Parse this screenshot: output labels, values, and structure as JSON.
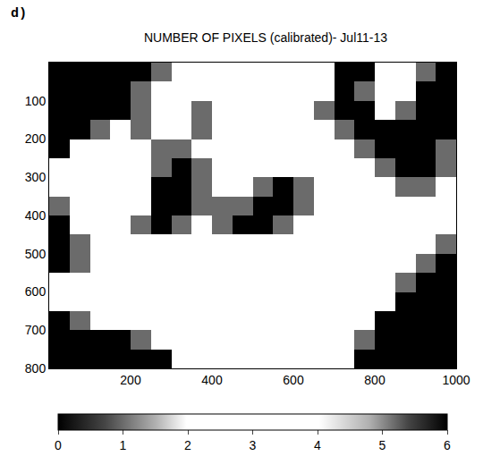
{
  "chart_data": {
    "type": "heatmap",
    "title": "NUMBER OF PIXELS (calibrated)- Jul11-13",
    "annotations": [
      "d)"
    ],
    "x": [
      25,
      75,
      125,
      175,
      225,
      275,
      325,
      375,
      425,
      475,
      525,
      575,
      625,
      675,
      725,
      775,
      825,
      875,
      925,
      975
    ],
    "y": [
      25,
      75,
      125,
      175,
      225,
      275,
      325,
      375,
      425,
      475,
      525,
      575,
      625,
      675,
      725,
      775
    ],
    "z": [
      [
        0,
        0,
        0,
        0,
        0,
        1,
        3,
        2,
        3,
        3,
        3,
        3,
        3,
        2,
        0,
        0,
        2,
        3,
        1,
        0
      ],
      [
        0,
        0,
        0,
        0,
        1,
        3,
        3,
        2,
        3,
        3,
        3,
        3,
        3,
        2,
        0,
        1,
        3,
        3,
        0,
        0
      ],
      [
        0,
        0,
        0,
        0,
        1,
        3,
        2,
        1,
        3,
        3,
        3,
        3,
        2,
        1,
        0,
        0,
        2,
        1,
        0,
        0
      ],
      [
        0,
        0,
        1,
        2,
        1,
        2,
        2,
        1,
        2,
        3,
        3,
        3,
        2,
        2,
        1,
        0,
        0,
        0,
        0,
        0
      ],
      [
        0,
        3,
        3,
        3,
        2,
        1,
        1,
        2,
        2,
        3,
        3,
        3,
        3,
        2,
        2,
        1,
        0,
        0,
        0,
        1
      ],
      [
        2,
        3,
        3,
        3,
        3,
        1,
        0,
        1,
        2,
        3,
        3,
        2,
        3,
        3,
        2,
        2,
        1,
        0,
        0,
        1
      ],
      [
        2,
        3,
        3,
        3,
        2,
        0,
        0,
        1,
        2,
        2,
        1,
        0,
        1,
        3,
        3,
        3,
        2,
        1,
        1,
        2
      ],
      [
        1,
        3,
        3,
        3,
        2,
        0,
        0,
        1,
        1,
        1,
        0,
        0,
        1,
        3,
        3,
        3,
        3,
        2,
        2,
        2
      ],
      [
        0,
        2,
        3,
        3,
        1,
        0,
        1,
        2,
        1,
        0,
        0,
        1,
        2,
        3,
        3,
        3,
        3,
        3,
        2,
        2
      ],
      [
        0,
        1,
        2,
        3,
        3,
        2,
        3,
        3,
        3,
        2,
        2,
        3,
        3,
        3,
        3,
        3,
        3,
        3,
        2,
        1
      ],
      [
        0,
        1,
        3,
        3,
        3,
        3,
        3,
        3,
        3,
        3,
        3,
        3,
        3,
        3,
        3,
        3,
        3,
        2,
        1,
        0
      ],
      [
        2,
        3,
        3,
        3,
        3,
        3,
        3,
        3,
        3,
        3,
        3,
        3,
        3,
        3,
        3,
        3,
        3,
        1,
        0,
        0
      ],
      [
        3,
        3,
        3,
        3,
        3,
        3,
        3,
        3,
        3,
        3,
        3,
        3,
        3,
        3,
        3,
        3,
        2,
        0,
        0,
        0
      ],
      [
        0,
        1,
        2,
        3,
        3,
        3,
        3,
        3,
        3,
        3,
        3,
        3,
        3,
        3,
        3,
        2,
        0,
        0,
        0,
        0
      ],
      [
        0,
        0,
        0,
        0,
        1,
        2,
        3,
        2,
        3,
        2,
        3,
        2,
        3,
        2,
        3,
        1,
        0,
        0,
        0,
        0
      ],
      [
        0,
        0,
        0,
        0,
        0,
        0,
        2,
        3,
        2,
        3,
        2,
        3,
        2,
        3,
        2,
        0,
        0,
        0,
        0,
        0
      ]
    ],
    "xlim": [
      0,
      1000
    ],
    "xticks": [
      200,
      400,
      600,
      800,
      1000
    ],
    "ylim": [
      800,
      0
    ],
    "yticks": [
      100,
      200,
      300,
      400,
      500,
      600,
      700,
      800
    ],
    "colorbar": {
      "range": [
        0,
        6
      ],
      "ticks": [
        0,
        1,
        2,
        3,
        4,
        5,
        6
      ]
    }
  }
}
